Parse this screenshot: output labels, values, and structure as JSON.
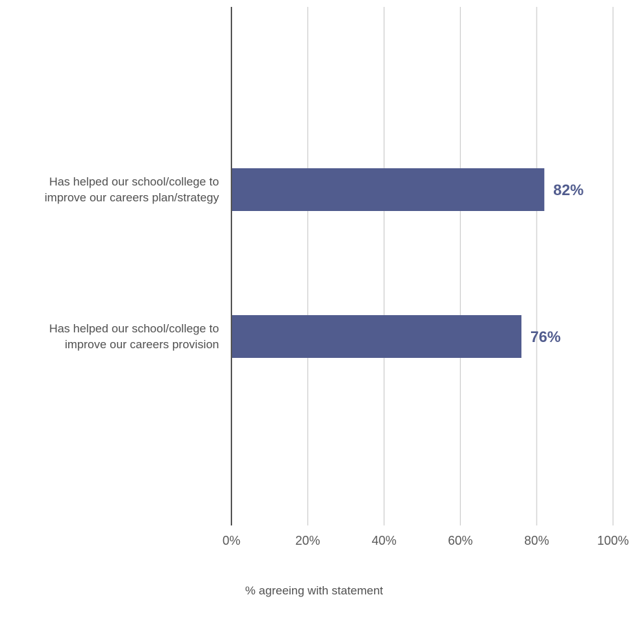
{
  "chart_data": {
    "type": "bar",
    "orientation": "horizontal",
    "categories": [
      [
        "Has helped our school/college to",
        "improve our careers plan/strategy"
      ],
      [
        "Has helped our school/college to",
        "improve our careers provision"
      ]
    ],
    "values": [
      82,
      76
    ],
    "data_labels": [
      "82%",
      "76%"
    ],
    "xlabel": "% agreeing with statement",
    "ylabel": "",
    "title": "",
    "xlim": [
      0,
      100
    ],
    "x_ticks": [
      "0%",
      "20%",
      "40%",
      "60%",
      "80%",
      "100%"
    ],
    "grid": "vertical",
    "legend": "none",
    "colors": {
      "bar": "#515c8e",
      "data_label": "#515c8e",
      "grid": "#d0d0d0",
      "axis": "#555555"
    }
  }
}
